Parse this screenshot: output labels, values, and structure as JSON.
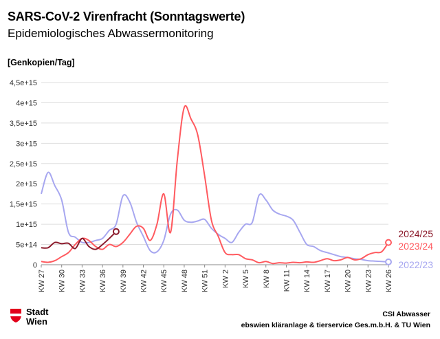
{
  "title": "SARS-CoV-2 Virenfracht (Sonntagswerte)",
  "subtitle": "Epidemiologisches Abwassermonitoring",
  "ylabel": "[Genkopien/Tag]",
  "footer": {
    "logo_text": "Stadt Wien",
    "credit_line1": "CSI Abwasser",
    "credit_line2": "ebswien kläranlage & tierservice Ges.m.b.H. & TU Wien",
    "logo_color": "#e2001a"
  },
  "chart_data": {
    "type": "line",
    "xlabel": "",
    "ylabel": "[Genkopien/Tag]",
    "ylim": [
      0,
      4500000000000000.0
    ],
    "yticks": [
      0,
      500000000000000.0,
      1000000000000000.0,
      1500000000000000.0,
      2000000000000000.0,
      2500000000000000.0,
      3000000000000000.0,
      3500000000000000.0,
      4000000000000000.0,
      4500000000000000.0
    ],
    "ytick_labels": [
      "0",
      "5e+14",
      "1e+15",
      "1,5e+15",
      "2e+15",
      "2,5e+15",
      "3e+15",
      "3,5e+15",
      "4e+15",
      "4,5e+15"
    ],
    "xtick_labels": [
      "KW 27",
      "KW 30",
      "KW 33",
      "KW 36",
      "KW 39",
      "KW 42",
      "KW 45",
      "KW 48",
      "KW 51",
      "KW 2",
      "KW 5",
      "KW 8",
      "KW 11",
      "KW 14",
      "KW 17",
      "KW 20",
      "KW 23",
      "KW 26"
    ],
    "x_weeks": [
      "KW 27",
      "KW 28",
      "KW 29",
      "KW 30",
      "KW 31",
      "KW 32",
      "KW 33",
      "KW 34",
      "KW 35",
      "KW 36",
      "KW 37",
      "KW 38",
      "KW 39",
      "KW 40",
      "KW 41",
      "KW 42",
      "KW 43",
      "KW 44",
      "KW 45",
      "KW 46",
      "KW 47",
      "KW 48",
      "KW 49",
      "KW 50",
      "KW 51",
      "KW 52",
      "KW 1",
      "KW 2",
      "KW 3",
      "KW 4",
      "KW 5",
      "KW 6",
      "KW 7",
      "KW 8",
      "KW 9",
      "KW 10",
      "KW 11",
      "KW 12",
      "KW 13",
      "KW 14",
      "KW 15",
      "KW 16",
      "KW 17",
      "KW 18",
      "KW 19",
      "KW 20",
      "KW 21",
      "KW 22",
      "KW 23",
      "KW 24",
      "KW 25",
      "KW 26"
    ],
    "grid": true,
    "legend": "right",
    "series": [
      {
        "name": "2022/23",
        "color": "#a7a7f0",
        "values": [
          1750000000000000.0,
          2280000000000000.0,
          1950000000000000.0,
          1600000000000000.0,
          800000000000000.0,
          680000000000000.0,
          550000000000000.0,
          550000000000000.0,
          600000000000000.0,
          650000000000000.0,
          850000000000000.0,
          1000000000000000.0,
          1700000000000000.0,
          1550000000000000.0,
          1050000000000000.0,
          700000000000000.0,
          350000000000000.0,
          320000000000000.0,
          600000000000000.0,
          1250000000000000.0,
          1350000000000000.0,
          1100000000000000.0,
          1050000000000000.0,
          1080000000000000.0,
          1120000000000000.0,
          900000000000000.0,
          750000000000000.0,
          650000000000000.0,
          550000000000000.0,
          800000000000000.0,
          1000000000000000.0,
          1050000000000000.0,
          1720000000000000.0,
          1600000000000000.0,
          1350000000000000.0,
          1250000000000000.0,
          1200000000000000.0,
          1100000000000000.0,
          800000000000000.0,
          500000000000000.0,
          450000000000000.0,
          350000000000000.0,
          300000000000000.0,
          250000000000000.0,
          200000000000000.0,
          180000000000000.0,
          150000000000000.0,
          130000000000000.0,
          100000000000000.0,
          90000000000000.0,
          80000000000000.0,
          70000000000000.0
        ]
      },
      {
        "name": "2023/24",
        "color": "#ff5a5f",
        "values": [
          80000000000000.0,
          60000000000000.0,
          100000000000000.0,
          200000000000000.0,
          300000000000000.0,
          500000000000000.0,
          650000000000000.0,
          600000000000000.0,
          450000000000000.0,
          380000000000000.0,
          500000000000000.0,
          450000000000000.0,
          550000000000000.0,
          750000000000000.0,
          950000000000000.0,
          900000000000000.0,
          600000000000000.0,
          1000000000000000.0,
          1750000000000000.0,
          800000000000000.0,
          2600000000000000.0,
          3880000000000000.0,
          3600000000000000.0,
          3200000000000000.0,
          2200000000000000.0,
          1100000000000000.0,
          700000000000000.0,
          300000000000000.0,
          250000000000000.0,
          250000000000000.0,
          150000000000000.0,
          120000000000000.0,
          50000000000000.0,
          80000000000000.0,
          30000000000000.0,
          50000000000000.0,
          40000000000000.0,
          60000000000000.0,
          50000000000000.0,
          70000000000000.0,
          60000000000000.0,
          100000000000000.0,
          150000000000000.0,
          100000000000000.0,
          120000000000000.0,
          180000000000000.0,
          120000000000000.0,
          150000000000000.0,
          250000000000000.0,
          300000000000000.0,
          320000000000000.0,
          550000000000000.0
        ]
      },
      {
        "name": "2024/25",
        "color": "#8b1a2b",
        "values": [
          420000000000000.0,
          420000000000000.0,
          550000000000000.0,
          520000000000000.0,
          530000000000000.0,
          400000000000000.0,
          650000000000000.0,
          450000000000000.0,
          380000000000000.0,
          500000000000000.0,
          650000000000000.0,
          820000000000000.0
        ]
      }
    ]
  }
}
